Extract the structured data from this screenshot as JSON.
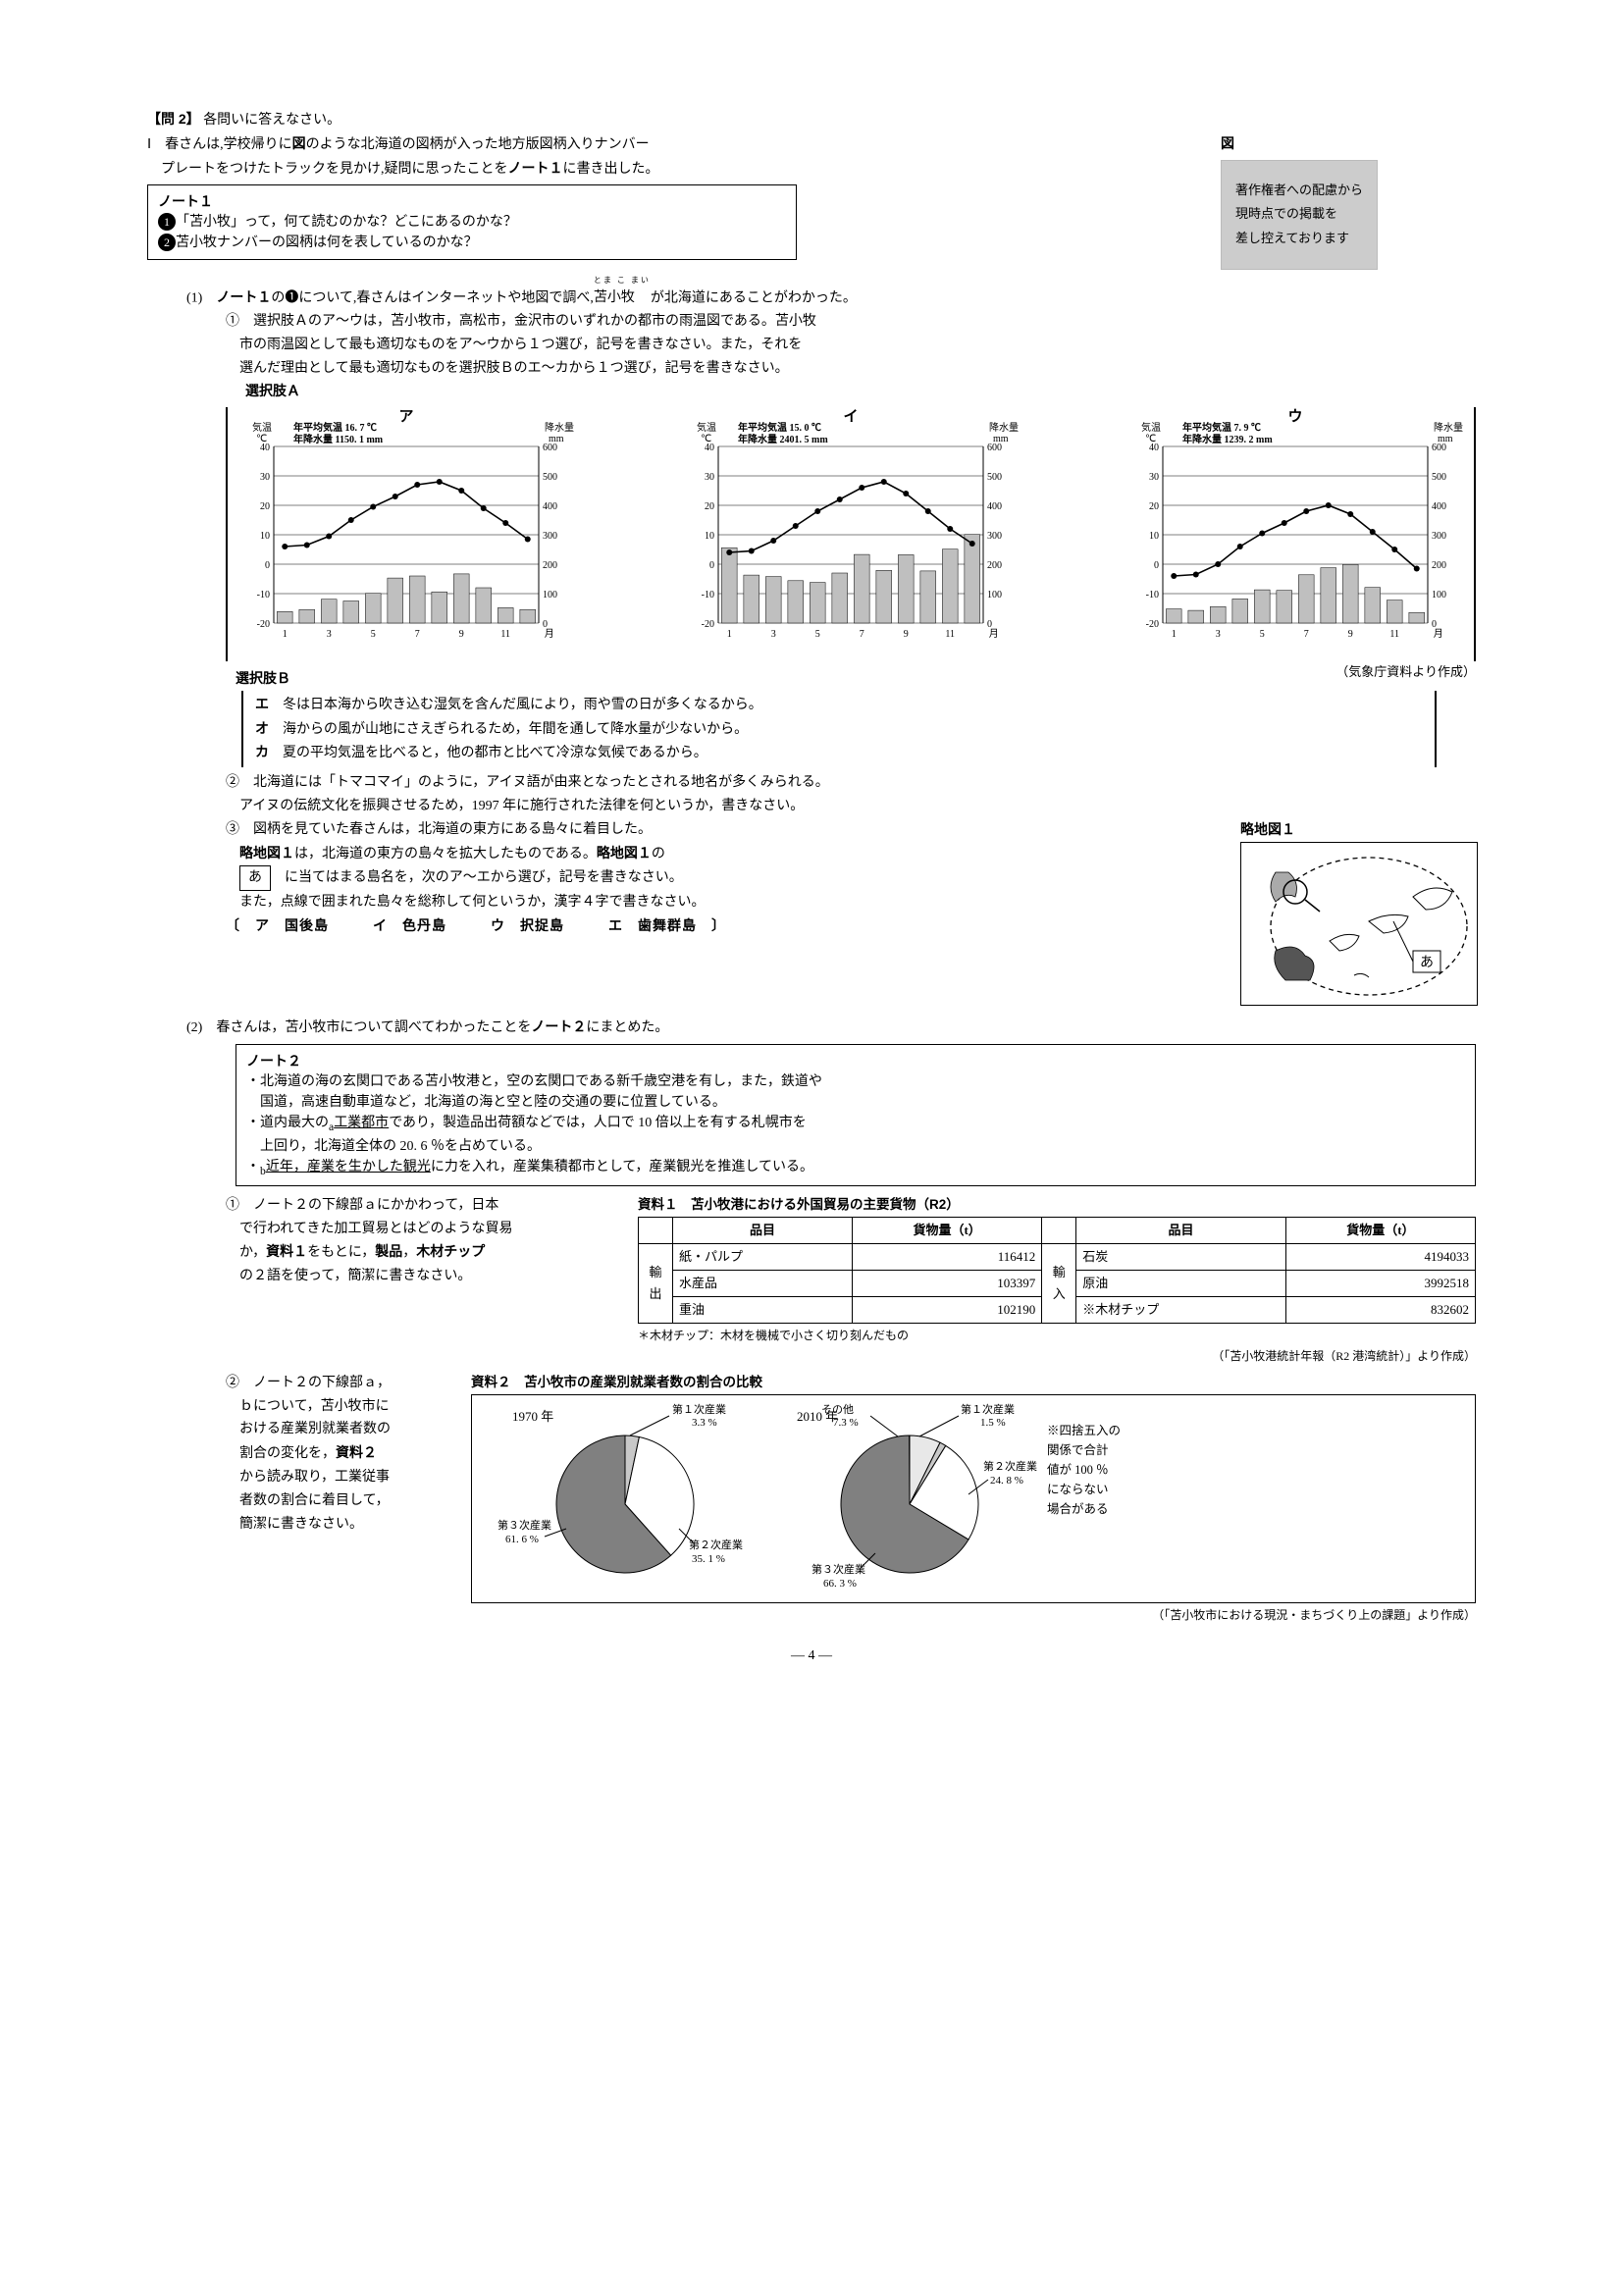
{
  "header": {
    "question_num": "【問 2】",
    "prompt": "各問いに答えなさい。",
    "intro_line1_prefix": "Ⅰ　春さんは,学校帰りに",
    "intro_zu": "図",
    "intro_line1_mid": "のような北海道の図柄が入った地方版図柄入りナンバー",
    "intro_line2": "プレートをつけたトラックを見かけ,疑問に思ったことを",
    "intro_note1": "ノート１",
    "intro_line2_end": "に書き出した。",
    "zu_label": "図",
    "copyright": [
      "著作権者への配慮から",
      "現時点での掲載を",
      "差し控えております"
    ]
  },
  "note1": {
    "title": "ノート１",
    "bullet1": "「苫小牧」って，何て読むのかな？どこにあるのかな？",
    "bullet2": "苫小牧ナンバーの図柄は何を表しているのかな？"
  },
  "q1": {
    "intro_pre": "(1)　",
    "intro_mid1": "ノート１",
    "intro_mid2": "の",
    "intro_bullet": "❶",
    "intro_mid3": "について,春さんはインターネットや地図で調べ,",
    "ruby": "とま こ まい",
    "tomakomai": "苫小牧",
    "intro_end": "が北海道にあることがわかった。",
    "sub1_l1": "①　選択肢Ａのア〜ウは，苫小牧市，高松市，金沢市のいずれかの都市の雨温図である。苫小牧",
    "sub1_l2": "市の雨温図として最も適切なものをア〜ウから１つ選び，記号を書きなさい。また，それを",
    "sub1_l3": "選んだ理由として最も適切なものを選択肢Ｂのエ〜カから１つ選び，記号を書きなさい。",
    "choiceA": "選択肢Ａ",
    "choiceB": "選択肢Ｂ",
    "source_a": "（気象庁資料より作成）"
  },
  "charts": [
    {
      "label": "ア",
      "avg_temp_label": "年平均気温 16. 7 ℃",
      "avg_rain_label": "年降水量 1150. 1 mm",
      "temp": [
        6,
        6.5,
        9.5,
        15,
        19.5,
        23,
        27,
        28,
        25,
        19,
        14,
        8.5
      ],
      "rain": [
        39,
        46,
        81,
        75,
        101,
        153,
        160,
        106,
        167,
        120,
        52,
        46
      ],
      "temp_axis": {
        "min": -20,
        "max": 40,
        "ticks": [
          -20,
          -10,
          0,
          10,
          20,
          30,
          40
        ]
      },
      "rain_axis": {
        "min": 0,
        "max": 600,
        "ticks": [
          0,
          100,
          200,
          300,
          400,
          500,
          600
        ]
      }
    },
    {
      "label": "イ",
      "avg_temp_label": "年平均気温 15. 0 ℃",
      "avg_rain_label": "年降水量 2401. 5 mm",
      "temp": [
        4,
        4.5,
        8,
        13,
        18,
        22,
        26,
        28,
        24,
        18,
        12,
        7
      ],
      "rain": [
        256,
        163,
        158,
        144,
        138,
        170,
        233,
        179,
        232,
        177,
        251,
        301
      ],
      "temp_axis": {
        "min": -20,
        "max": 40,
        "ticks": [
          -20,
          -10,
          0,
          10,
          20,
          30,
          40
        ]
      },
      "rain_axis": {
        "min": 0,
        "max": 600,
        "ticks": [
          0,
          100,
          200,
          300,
          400,
          500,
          600
        ]
      }
    },
    {
      "label": "ウ",
      "avg_temp_label": "年平均気温 7. 9 ℃",
      "avg_rain_label": "年降水量 1239. 2 mm",
      "temp": [
        -4,
        -3.5,
        0,
        6,
        10.5,
        14,
        18,
        20,
        17,
        11,
        5,
        -1.5
      ],
      "rain": [
        48,
        43,
        56,
        82,
        113,
        111,
        164,
        188,
        199,
        121,
        78,
        36
      ],
      "temp_axis": {
        "min": -20,
        "max": 40,
        "ticks": [
          -20,
          -10,
          0,
          10,
          20,
          30,
          40
        ]
      },
      "rain_axis": {
        "min": 0,
        "max": 600,
        "ticks": [
          0,
          100,
          200,
          300,
          400,
          500,
          600
        ]
      }
    }
  ],
  "choiceB_items": [
    {
      "k": "エ",
      "t": "冬は日本海から吹き込む湿気を含んだ風により，雨や雪の日が多くなるから。"
    },
    {
      "k": "オ",
      "t": "海からの風が山地にさえぎられるため，年間を通して降水量が少ないから。"
    },
    {
      "k": "カ",
      "t": "夏の平均気温を比べると，他の都市と比べて冷涼な気候であるから。"
    }
  ],
  "sub2": {
    "l1": "②　北海道には「トマコマイ」のように，アイヌ語が由来となったとされる地名が多くみられる。",
    "l2": "アイヌの伝統文化を振興させるため，1997 年に施行された法律を何というか，書きなさい。"
  },
  "sub3": {
    "l1": "③　図柄を見ていた春さんは，北海道の東方にある島々に着目した。",
    "map_label": "略地図１",
    "l2_a": "略地図１",
    "l2_b": "は，北海道の東方の島々を拡大したものである。",
    "l2_c": "略地図１",
    "l2_d": "の",
    "a_box": "あ",
    "l3": "に当てはまる島名を，次のア〜エから選び，記号を書きなさい。",
    "l4": "また，点線で囲まれた島々を総称して何というか，漢字４字で書きなさい。",
    "options": "〔　ア　国後島　　　イ　色丹島　　　ウ　択捉島　　　エ　歯舞群島　〕"
  },
  "q2": {
    "intro": "(2)　春さんは，苫小牧市について調べてわかったことを",
    "note2": "ノート２",
    "intro_end": "にまとめた。"
  },
  "note2": {
    "title": "ノート２",
    "l1": "・北海道の海の玄関口である苫小牧港と，空の玄関口である新千歳空港を有し，また，鉄道や",
    "l2": "　国道，高速自動車道など，北海道の海と空と陸の交通の要に位置している。",
    "l3_pre": "・道内最大の",
    "l3_sub": "a",
    "l3_u": "工業都市",
    "l3_post": "であり，製造品出荷額などでは，人口で 10 倍以上を有する札幌市を",
    "l4": "　上回り，北海道全体の 20. 6 ％を占めている。",
    "l5_pre": "・",
    "l5_sub": "b",
    "l5_u": "近年，産業を生かした観光",
    "l5_post": "に力を入れ，産業集積都市として，産業観光を推進している。"
  },
  "q2_sub1": {
    "l1": "①　ノート２の下線部ａにかかわって，日本",
    "l2": "で行われてきた加工貿易とはどのような貿易",
    "l3_a": "か，",
    "l3_b": "資料１",
    "l3_c": "をもとに，",
    "l3_d": "製品",
    "l3_e": "，",
    "l3_f": "木材チップ",
    "l4": "の２語を使って，簡潔に書きなさい。"
  },
  "table1": {
    "title": "資料１　苫小牧港における外国貿易の主要貨物（R2）",
    "h1": "品目",
    "h2": "貨物量（t）",
    "h3": "品目",
    "h4": "貨物量（t）",
    "export": "輸出",
    "import": "輸入",
    "rows_export": [
      [
        "紙・パルプ",
        "116412"
      ],
      [
        "水産品",
        "103397"
      ],
      [
        "重油",
        "102190"
      ]
    ],
    "rows_import": [
      [
        "石炭",
        "4194033"
      ],
      [
        "原油",
        "3992518"
      ],
      [
        "※木材チップ",
        "832602"
      ]
    ],
    "note1": "＊木材チップ：木材を機械で小さく切り刻んだもの",
    "note2": "（「苫小牧港統計年報（R2 港湾統計）」より作成）"
  },
  "q2_sub2": {
    "l1": "②　ノート２の下線部ａ，",
    "l2": "ｂについて，苫小牧市に",
    "l3": "おける産業別就業者数の",
    "l4_a": "割合の変化を，",
    "l4_b": "資料２",
    "l5": "から読み取り，工業従事",
    "l6": "者数の割合に着目して，",
    "l7": "簡潔に書きなさい。"
  },
  "pie": {
    "title": "資料２　苫小牧市の産業別就業者数の割合の比較",
    "year1": "1970 年",
    "year2": "2010 年",
    "y1": {
      "primary": "第１次産業",
      "primary_v": "3.3 %",
      "secondary": "第２次産業",
      "secondary_v": "35. 1 %",
      "tertiary": "第３次産業",
      "tertiary_v": "61. 6 %"
    },
    "y2": {
      "other": "その他",
      "other_v": "7.3 %",
      "primary": "第１次産業",
      "primary_v": "1.5 %",
      "secondary": "第２次産業",
      "secondary_v": "24. 8 %",
      "tertiary": "第３次産業",
      "tertiary_v": "66. 3 %"
    },
    "note": [
      "※四捨五入の",
      "関係で合計",
      "値が 100 ％",
      "にならない",
      "場合がある"
    ],
    "source": "（「苫小牧市における現況・まちづくり上の課題」より作成）",
    "y1_data": [
      {
        "v": 3.3,
        "c": "#c8c8c8"
      },
      {
        "v": 35.1,
        "c": "#ffffff"
      },
      {
        "v": 61.6,
        "c": "#808080"
      }
    ],
    "y2_data": [
      {
        "v": 7.3,
        "c": "#e8e8e8"
      },
      {
        "v": 1.5,
        "c": "#c8c8c8"
      },
      {
        "v": 24.8,
        "c": "#ffffff"
      },
      {
        "v": 66.3,
        "c": "#808080"
      }
    ]
  },
  "page": "― 4 ―"
}
